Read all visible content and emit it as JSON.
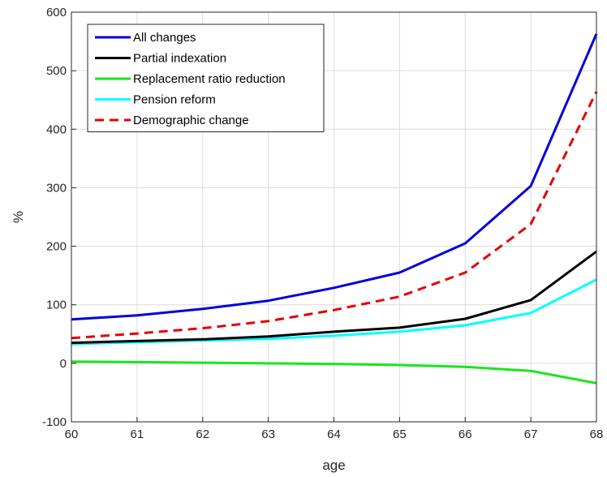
{
  "chart_data": {
    "type": "line",
    "xlabel": "age",
    "ylabel": "%",
    "xlim": [
      60,
      68
    ],
    "ylim": [
      -100,
      600
    ],
    "xticks": [
      "60",
      "61",
      "62",
      "63",
      "64",
      "65",
      "66",
      "67",
      "68"
    ],
    "yticks": [
      "-100",
      "0",
      "100",
      "200",
      "300",
      "400",
      "500",
      "600"
    ],
    "grid": true,
    "legend_position": "top-left",
    "x": [
      60,
      61,
      62,
      63,
      64,
      65,
      66,
      67,
      68
    ],
    "series": [
      {
        "name": "All changes",
        "color": "#0000d9",
        "style": "solid",
        "values": [
          75,
          82,
          93,
          107,
          129,
          155,
          205,
          303,
          563
        ]
      },
      {
        "name": "Partial indexation",
        "color": "#000000",
        "style": "solid",
        "values": [
          35,
          38,
          41,
          46,
          54,
          61,
          76,
          108,
          191
        ]
      },
      {
        "name": "Replacement ratio reduction",
        "color": "#19e619",
        "style": "solid",
        "values": [
          3,
          2,
          1,
          0,
          -1,
          -3,
          -6,
          -13,
          -34
        ]
      },
      {
        "name": "Pension reform",
        "color": "#00ffff",
        "style": "solid",
        "values": [
          33,
          36,
          39,
          42,
          47,
          54,
          65,
          86,
          143
        ]
      },
      {
        "name": "Demographic change",
        "color": "#e60000",
        "style": "dashed",
        "values": [
          43,
          51,
          60,
          72,
          91,
          114,
          155,
          238,
          464
        ]
      }
    ]
  }
}
